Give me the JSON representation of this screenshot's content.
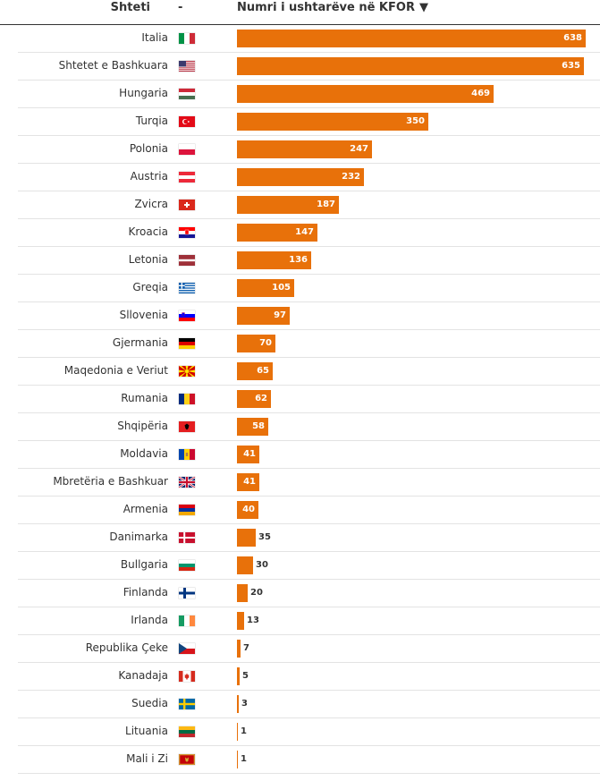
{
  "header": {
    "country_label": "Shteti",
    "flag_label": "-",
    "value_label": "Numri i ushtarëve në KFOR"
  },
  "colors": {
    "bar": "#e8710a"
  },
  "chart_data": {
    "type": "bar",
    "orientation": "horizontal",
    "xlim": [
      0,
      638
    ],
    "categories": [
      "Italia",
      "Shtetet e Bashkuara",
      "Hungaria",
      "Turqia",
      "Polonia",
      "Austria",
      "Zvicra",
      "Kroacia",
      "Letonia",
      "Greqia",
      "Sllovenia",
      "Gjermania",
      "Maqedonia e Veriut",
      "Rumania",
      "Shqipëria",
      "Moldavia",
      "Mbretëria e Bashkuar",
      "Armenia",
      "Danimarka",
      "Bullgaria",
      "Finlanda",
      "Irlanda",
      "Republika Çeke",
      "Kanadaja",
      "Suedia",
      "Lituania",
      "Mali i Zi"
    ],
    "values": [
      638,
      635,
      469,
      350,
      247,
      232,
      187,
      147,
      136,
      105,
      97,
      70,
      65,
      62,
      58,
      41,
      41,
      40,
      35,
      30,
      20,
      13,
      7,
      5,
      3,
      1,
      1
    ],
    "flags": [
      "italy-flag",
      "usa-flag",
      "hungary-flag",
      "turkey-flag",
      "poland-flag",
      "austria-flag",
      "switzerland-flag",
      "croatia-flag",
      "latvia-flag",
      "greece-flag",
      "slovenia-flag",
      "germany-flag",
      "north-macedonia-flag",
      "romania-flag",
      "albania-flag",
      "moldova-flag",
      "uk-flag",
      "armenia-flag",
      "denmark-flag",
      "bulgaria-flag",
      "finland-flag",
      "ireland-flag",
      "czechia-flag",
      "canada-flag",
      "sweden-flag",
      "lithuania-flag",
      "montenegro-flag"
    ]
  }
}
